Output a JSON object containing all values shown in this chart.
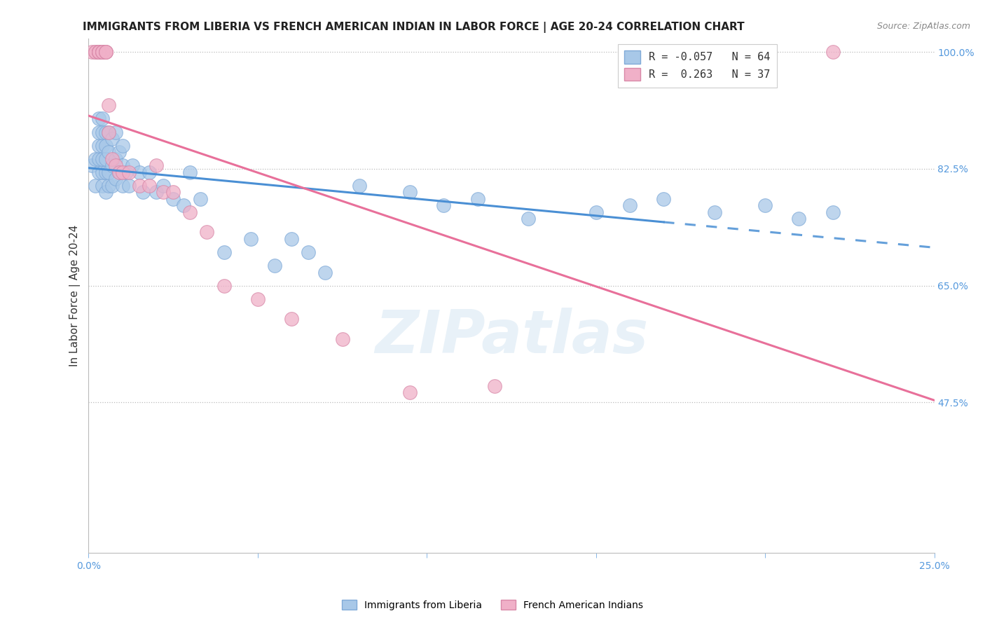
{
  "title": "IMMIGRANTS FROM LIBERIA VS FRENCH AMERICAN INDIAN IN LABOR FORCE | AGE 20-24 CORRELATION CHART",
  "source": "Source: ZipAtlas.com",
  "ylabel": "In Labor Force | Age 20-24",
  "x_min": 0.0,
  "x_max": 0.25,
  "y_min": 0.25,
  "y_max": 1.02,
  "x_ticks": [
    0.0,
    0.05,
    0.1,
    0.15,
    0.2,
    0.25
  ],
  "x_tick_labels": [
    "0.0%",
    "",
    "",
    "",
    "",
    "25.0%"
  ],
  "y_ticks": [
    0.475,
    0.65,
    0.825,
    1.0
  ],
  "y_tick_labels": [
    "47.5%",
    "65.0%",
    "82.5%",
    "100.0%"
  ],
  "blue_color": "#a8c8e8",
  "pink_color": "#f0b0c8",
  "blue_line_color": "#4a8fd4",
  "pink_line_color": "#e8709a",
  "R_blue": -0.057,
  "N_blue": 64,
  "R_pink": 0.263,
  "N_pink": 37,
  "watermark": "ZIPatlas",
  "background_color": "#ffffff",
  "blue_scatter_x": [
    0.001,
    0.002,
    0.002,
    0.003,
    0.003,
    0.003,
    0.003,
    0.003,
    0.004,
    0.004,
    0.004,
    0.004,
    0.004,
    0.004,
    0.005,
    0.005,
    0.005,
    0.005,
    0.005,
    0.006,
    0.006,
    0.006,
    0.006,
    0.007,
    0.007,
    0.007,
    0.008,
    0.008,
    0.008,
    0.009,
    0.009,
    0.01,
    0.01,
    0.01,
    0.011,
    0.012,
    0.013,
    0.015,
    0.016,
    0.018,
    0.02,
    0.022,
    0.025,
    0.028,
    0.03,
    0.033,
    0.04,
    0.048,
    0.055,
    0.06,
    0.065,
    0.07,
    0.08,
    0.095,
    0.105,
    0.115,
    0.13,
    0.15,
    0.16,
    0.17,
    0.185,
    0.2,
    0.21,
    0.22
  ],
  "blue_scatter_y": [
    0.83,
    0.8,
    0.84,
    0.82,
    0.84,
    0.86,
    0.88,
    0.9,
    0.8,
    0.82,
    0.84,
    0.86,
    0.88,
    0.9,
    0.79,
    0.82,
    0.84,
    0.86,
    0.88,
    0.8,
    0.82,
    0.85,
    0.88,
    0.8,
    0.83,
    0.87,
    0.81,
    0.84,
    0.88,
    0.82,
    0.85,
    0.8,
    0.83,
    0.86,
    0.82,
    0.8,
    0.83,
    0.82,
    0.79,
    0.82,
    0.79,
    0.8,
    0.78,
    0.77,
    0.82,
    0.78,
    0.7,
    0.72,
    0.68,
    0.72,
    0.7,
    0.67,
    0.8,
    0.79,
    0.77,
    0.78,
    0.75,
    0.76,
    0.77,
    0.78,
    0.76,
    0.77,
    0.75,
    0.76
  ],
  "pink_scatter_x": [
    0.001,
    0.002,
    0.002,
    0.003,
    0.003,
    0.003,
    0.003,
    0.003,
    0.003,
    0.004,
    0.004,
    0.004,
    0.004,
    0.005,
    0.005,
    0.005,
    0.006,
    0.006,
    0.007,
    0.008,
    0.009,
    0.01,
    0.012,
    0.015,
    0.018,
    0.02,
    0.022,
    0.025,
    0.03,
    0.035,
    0.04,
    0.05,
    0.06,
    0.075,
    0.095,
    0.12,
    0.22
  ],
  "pink_scatter_y": [
    1.0,
    1.0,
    1.0,
    1.0,
    1.0,
    1.0,
    1.0,
    1.0,
    1.0,
    1.0,
    1.0,
    1.0,
    1.0,
    1.0,
    1.0,
    1.0,
    0.88,
    0.92,
    0.84,
    0.83,
    0.82,
    0.82,
    0.82,
    0.8,
    0.8,
    0.83,
    0.79,
    0.79,
    0.76,
    0.73,
    0.65,
    0.63,
    0.6,
    0.57,
    0.49,
    0.5,
    1.0
  ]
}
